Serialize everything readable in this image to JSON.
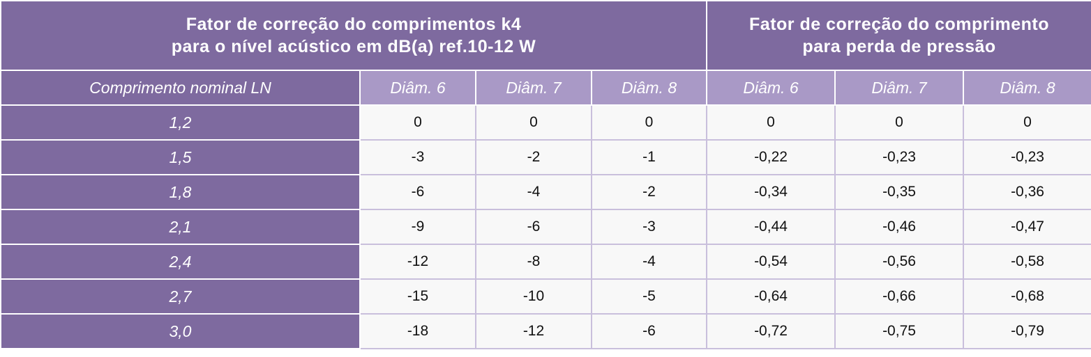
{
  "header": {
    "left_title": [
      "Fator de correção do comprimentos k4",
      "para o nível acústico em dB(a) ref.10-12 W"
    ],
    "right_title": [
      "Fator de correção do comprimento",
      "para perda de pressão"
    ]
  },
  "table": {
    "columns": [
      "Comprimento nominal LN",
      "Diâm. 6",
      "Diâm. 7",
      "Diâm. 8",
      "Diâm. 6",
      "Diâm. 7",
      "Diâm. 8"
    ],
    "rows": [
      [
        "1,2",
        "0",
        "0",
        "0",
        "0",
        "0",
        "0"
      ],
      [
        "1,5",
        "-3",
        "-2",
        "-1",
        "-0,22",
        "-0,23",
        "-0,23"
      ],
      [
        "1,8",
        "-6",
        "-4",
        "-2",
        "-0,34",
        "-0,35",
        "-0,36"
      ],
      [
        "2,1",
        "-9",
        "-6",
        "-3",
        "-0,44",
        "-0,46",
        "-0,47"
      ],
      [
        "2,4",
        "-12",
        "-8",
        "-4",
        "-0,54",
        "-0,56",
        "-0,58"
      ],
      [
        "2,7",
        "-15",
        "-10",
        "-5",
        "-0,64",
        "-0,66",
        "-0,68"
      ],
      [
        "3,0",
        "-18",
        "-12",
        "-6",
        "-0,72",
        "-0,75",
        "-0,79"
      ]
    ]
  }
}
